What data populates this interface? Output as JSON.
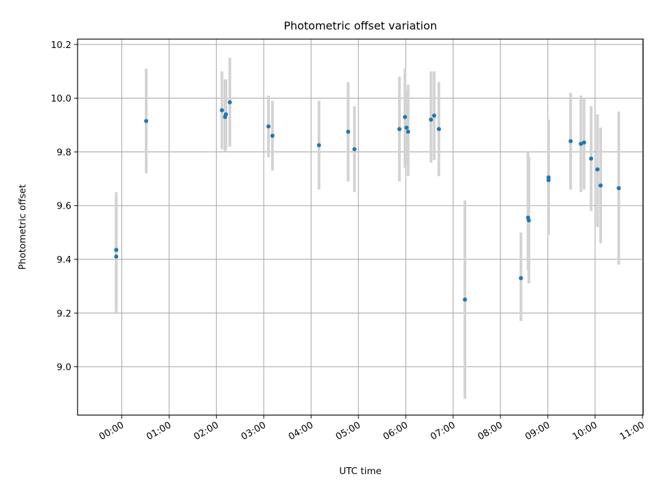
{
  "chart_data": {
    "type": "scatter",
    "title": "Photometric offset variation",
    "xlabel": "UTC time",
    "ylabel": "Photometric offset",
    "x_tick_labels": [
      "00:00",
      "01:00",
      "02:00",
      "03:00",
      "04:00",
      "05:00",
      "06:00",
      "07:00",
      "08:00",
      "09:00",
      "10:00",
      "11:00"
    ],
    "y_tick_labels": [
      "9.0",
      "9.2",
      "9.4",
      "9.6",
      "9.8",
      "10.0",
      "10.2"
    ],
    "xlim": [
      "-00:56",
      "11:01"
    ],
    "ylim": [
      8.82,
      10.22
    ],
    "grid": true,
    "marker_color": "#1f77b4",
    "errorbar_color": "#d3d3d3",
    "points": [
      {
        "x": "-00:07",
        "y": 9.435,
        "ylow": 9.22,
        "yhigh": 9.65
      },
      {
        "x": "-00:07",
        "y": 9.41,
        "ylow": 9.2,
        "yhigh": 9.62
      },
      {
        "x": "00:31",
        "y": 9.915,
        "ylow": 9.72,
        "yhigh": 10.11
      },
      {
        "x": "02:07",
        "y": 9.955,
        "ylow": 9.81,
        "yhigh": 10.1
      },
      {
        "x": "02:11",
        "y": 9.93,
        "ylow": 9.8,
        "yhigh": 10.07
      },
      {
        "x": "02:12",
        "y": 9.94,
        "ylow": 9.81,
        "yhigh": 10.07
      },
      {
        "x": "02:17",
        "y": 9.985,
        "ylow": 9.82,
        "yhigh": 10.15
      },
      {
        "x": "03:06",
        "y": 9.895,
        "ylow": 9.78,
        "yhigh": 10.01
      },
      {
        "x": "03:11",
        "y": 9.86,
        "ylow": 9.73,
        "yhigh": 9.99
      },
      {
        "x": "04:10",
        "y": 9.825,
        "ylow": 9.66,
        "yhigh": 9.99
      },
      {
        "x": "04:47",
        "y": 9.875,
        "ylow": 9.69,
        "yhigh": 10.06
      },
      {
        "x": "04:55",
        "y": 9.81,
        "ylow": 9.65,
        "yhigh": 9.97
      },
      {
        "x": "05:52",
        "y": 9.885,
        "ylow": 9.69,
        "yhigh": 10.08
      },
      {
        "x": "05:59",
        "y": 9.93,
        "ylow": 9.74,
        "yhigh": 10.11
      },
      {
        "x": "06:01",
        "y": 9.89,
        "ylow": 9.75,
        "yhigh": 10.03
      },
      {
        "x": "06:03",
        "y": 9.875,
        "ylow": 9.71,
        "yhigh": 10.05
      },
      {
        "x": "06:32",
        "y": 9.92,
        "ylow": 9.76,
        "yhigh": 10.1
      },
      {
        "x": "06:36",
        "y": 9.935,
        "ylow": 9.77,
        "yhigh": 10.1
      },
      {
        "x": "06:42",
        "y": 9.885,
        "ylow": 9.71,
        "yhigh": 10.06
      },
      {
        "x": "07:15",
        "y": 9.25,
        "ylow": 8.88,
        "yhigh": 9.62
      },
      {
        "x": "08:26",
        "y": 9.33,
        "ylow": 9.17,
        "yhigh": 9.5
      },
      {
        "x": "08:35",
        "y": 9.555,
        "ylow": 9.36,
        "yhigh": 9.8
      },
      {
        "x": "08:36",
        "y": 9.545,
        "ylow": 9.31,
        "yhigh": 9.78
      },
      {
        "x": "09:01",
        "y": 9.705,
        "ylow": 9.49,
        "yhigh": 9.92
      },
      {
        "x": "09:01",
        "y": 9.695,
        "ylow": 9.55,
        "yhigh": 9.85
      },
      {
        "x": "09:29",
        "y": 9.84,
        "ylow": 9.66,
        "yhigh": 10.02
      },
      {
        "x": "09:42",
        "y": 9.83,
        "ylow": 9.65,
        "yhigh": 10.01
      },
      {
        "x": "09:46",
        "y": 9.835,
        "ylow": 9.66,
        "yhigh": 10.0
      },
      {
        "x": "09:55",
        "y": 9.775,
        "ylow": 9.58,
        "yhigh": 9.97
      },
      {
        "x": "10:03",
        "y": 9.735,
        "ylow": 9.52,
        "yhigh": 9.94
      },
      {
        "x": "10:07",
        "y": 9.675,
        "ylow": 9.46,
        "yhigh": 9.89
      },
      {
        "x": "10:30",
        "y": 9.665,
        "ylow": 9.38,
        "yhigh": 9.95
      }
    ]
  }
}
